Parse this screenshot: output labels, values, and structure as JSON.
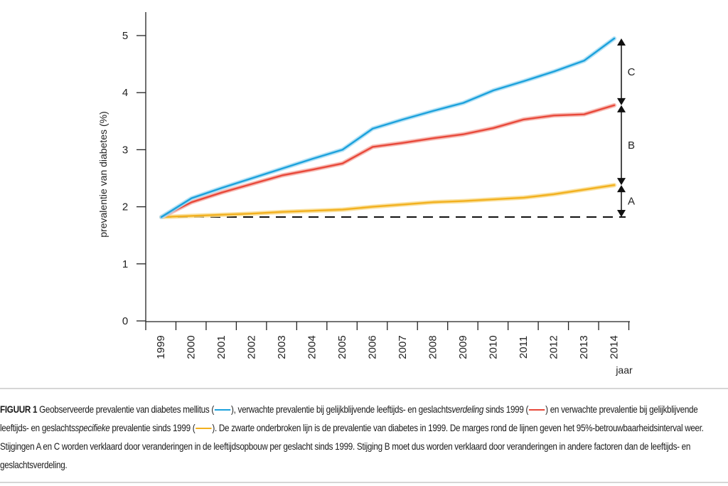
{
  "chart_data": {
    "type": "line",
    "title": "",
    "xlabel": "jaar",
    "ylabel": "prevalentie van diabetes (%)",
    "ylim": [
      0,
      5
    ],
    "yticks": [
      "0",
      "1",
      "2",
      "3",
      "4",
      "5"
    ],
    "x": [
      "1999",
      "2000",
      "2001",
      "2002",
      "2003",
      "2004",
      "2005",
      "2006",
      "2007",
      "2008",
      "2009",
      "2010",
      "2011",
      "2012",
      "2013",
      "2014"
    ],
    "grid": false,
    "series": [
      {
        "name": "Geobserveerde prevalentie van diabetes mellitus",
        "color": "#1ba1dc",
        "band_color": "#a8ddf3",
        "values": [
          1.82,
          2.15,
          2.33,
          2.5,
          2.67,
          2.84,
          3.0,
          3.37,
          3.53,
          3.68,
          3.82,
          4.04,
          4.2,
          4.37,
          4.56,
          4.95
        ]
      },
      {
        "name": "Verwachte prevalentie bij gelijkblijvende leeftijds- en geslachtsverdeling sinds 1999",
        "color": "#e8483a",
        "band_color": "#f6b0a8",
        "values": [
          1.82,
          2.08,
          2.25,
          2.4,
          2.55,
          2.65,
          2.76,
          3.05,
          3.12,
          3.2,
          3.27,
          3.38,
          3.53,
          3.6,
          3.62,
          3.78
        ]
      },
      {
        "name": "Verwachte prevalentie bij gelijkblijvende leeftijds- en geslachtsspecifieke prevalentie sinds 1999",
        "color": "#f2b01e",
        "band_color": "#f9dc8e",
        "values": [
          1.82,
          1.84,
          1.86,
          1.88,
          1.91,
          1.93,
          1.95,
          2.0,
          2.04,
          2.08,
          2.1,
          2.13,
          2.16,
          2.22,
          2.3,
          2.38
        ]
      }
    ],
    "baseline": {
      "name": "Prevalentie van diabetes in 1999",
      "value": 1.82,
      "style": "dashed",
      "color": "#111111"
    },
    "annotations": [
      {
        "label": "C",
        "from": 3.78,
        "to": 4.95
      },
      {
        "label": "B",
        "from": 2.38,
        "to": 3.78
      },
      {
        "label": "A",
        "from": 1.82,
        "to": 2.38
      }
    ]
  },
  "caption": {
    "figure_label": "FIGUUR 1",
    "seg1": " Geobserveerde prevalentie van diabetes mellitus (",
    "seg2": "), verwachte prevalentie bij gelijkblijvende leeftijds- en geslachts",
    "seg2_italic": "verdeling",
    "seg3": " sinds 1999 (",
    "seg4": ") en verwachte prevalentie bij gelijkblijvende leeftijds- en geslachts",
    "seg4_italic": "specifieke",
    "seg5": " prevalentie sinds 1999 (",
    "seg6": "). De zwarte onderbroken lijn is de prevalentie van diabetes in 1999. De marges rond de lijnen geven het 95%-betrouwbaarheidsinterval weer. Stijgingen A en C worden verklaard door veranderingen in de leeftijdsopbouw per geslacht sinds 1999. Stijging B moet dus worden verklaard door veranderingen in andere factoren dan de leeftijds- en geslachtsverdeling."
  }
}
